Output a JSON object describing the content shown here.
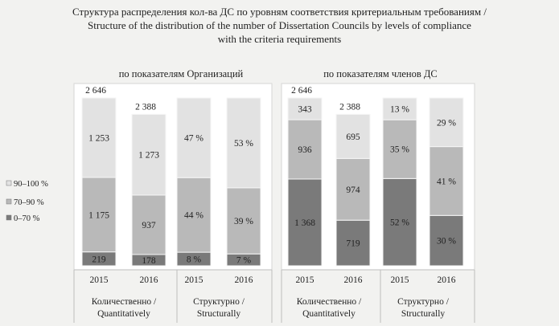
{
  "title": {
    "line1": "Структура распределения кол-ва ДС по уровням соответствия критериальным требованиям /",
    "line2": "Structure of the distribution of the number of Dissertation Councils by levels of compliance",
    "line3": "with the criteria requirements"
  },
  "legend": [
    {
      "label": "90–100 %",
      "color": "#e2e2e2"
    },
    {
      "label": "70–90 %",
      "color": "#b9b9b9"
    },
    {
      "label": "0–70 %",
      "color": "#7a7a7a"
    }
  ],
  "panels": [
    {
      "title": "по показателям Организаций"
    },
    {
      "title": "по показателям членов ДС"
    }
  ],
  "chart_data": [
    {
      "type": "bar",
      "subtype": "stacked",
      "panel_title": "по показателям Организаций",
      "groups": [
        {
          "label_line1": "Количественно /",
          "label_line2": "Quantitatively",
          "years": [
            "2015",
            "2016"
          ],
          "totals": [
            "2 646",
            "2 388"
          ],
          "series": [
            {
              "name": "0–70 %",
              "values": [
                219,
                178
              ],
              "labels": [
                "219",
                "178"
              ]
            },
            {
              "name": "70–90 %",
              "values": [
                1175,
                937
              ],
              "labels": [
                "1 175",
                "937"
              ]
            },
            {
              "name": "90–100 %",
              "values": [
                1253,
                1273
              ],
              "labels": [
                "1 253",
                "1 273"
              ]
            }
          ]
        },
        {
          "label_line1": "Структурно /",
          "label_line2": "Structurally",
          "years": [
            "2015",
            "2016"
          ],
          "series": [
            {
              "name": "0–70 %",
              "values": [
                8,
                7
              ],
              "labels": [
                "8 %",
                "7 %"
              ]
            },
            {
              "name": "70–90 %",
              "values": [
                44,
                39
              ],
              "labels": [
                "44 %",
                "39 %"
              ]
            },
            {
              "name": "90–100 %",
              "values": [
                47,
                53
              ],
              "labels": [
                "47 %",
                "53 %"
              ]
            }
          ]
        }
      ]
    },
    {
      "type": "bar",
      "subtype": "stacked",
      "panel_title": "по показателям членов ДС",
      "groups": [
        {
          "label_line1": "Количественно /",
          "label_line2": "Quantitatively",
          "years": [
            "2015",
            "2016"
          ],
          "totals": [
            "2 646",
            "2 388"
          ],
          "series": [
            {
              "name": "0–70 %",
              "values": [
                1368,
                719
              ],
              "labels": [
                "1 368",
                "719"
              ]
            },
            {
              "name": "70–90 %",
              "values": [
                936,
                974
              ],
              "labels": [
                "936",
                "974"
              ]
            },
            {
              "name": "90–100 %",
              "values": [
                343,
                695
              ],
              "labels": [
                "343",
                "695"
              ]
            }
          ]
        },
        {
          "label_line1": "Структурно /",
          "label_line2": "Structurally",
          "years": [
            "2015",
            "2016"
          ],
          "series": [
            {
              "name": "0–70 %",
              "values": [
                52,
                30
              ],
              "labels": [
                "52 %",
                "30 %"
              ]
            },
            {
              "name": "70–90 %",
              "values": [
                35,
                41
              ],
              "labels": [
                "35 %",
                "41 %"
              ]
            },
            {
              "name": "90–100 %",
              "values": [
                13,
                29
              ],
              "labels": [
                "13 %",
                "29 %"
              ]
            }
          ]
        }
      ]
    }
  ]
}
